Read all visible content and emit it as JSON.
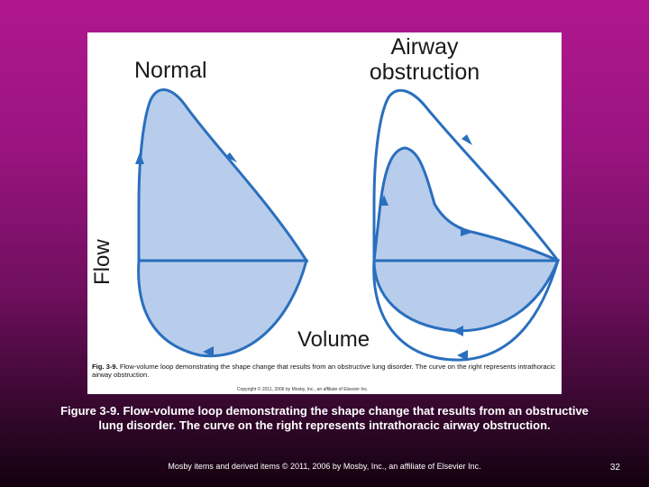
{
  "figure": {
    "label_normal": "Normal",
    "label_airway_line1": "Airway",
    "label_airway_line2": "obstruction",
    "axis_y": "Flow",
    "axis_x": "Volume",
    "caption_prefix": "Fig. 3-9.",
    "caption_text": "Flow-volume loop demonstrating the shape change that results from an obstructive lung disorder. The curve on the right represents intrathoracic airway obstruction.",
    "copyright": "Copyright © 2011, 2006 by Mosby, Inc., an affiliate of Elsevier Inc.",
    "colors": {
      "fill": "#b8cceb",
      "stroke": "#2a6fbe"
    }
  },
  "slide": {
    "caption": "Figure 3-9. Flow-volume loop demonstrating the shape change that results from an obstructive lung disorder. The curve on the right represents intrathoracic airway obstruction.",
    "footer": "Mosby items and derived items © 2011, 2006 by Mosby, Inc., an affiliate of Elsevier Inc.",
    "page_number": "32"
  }
}
